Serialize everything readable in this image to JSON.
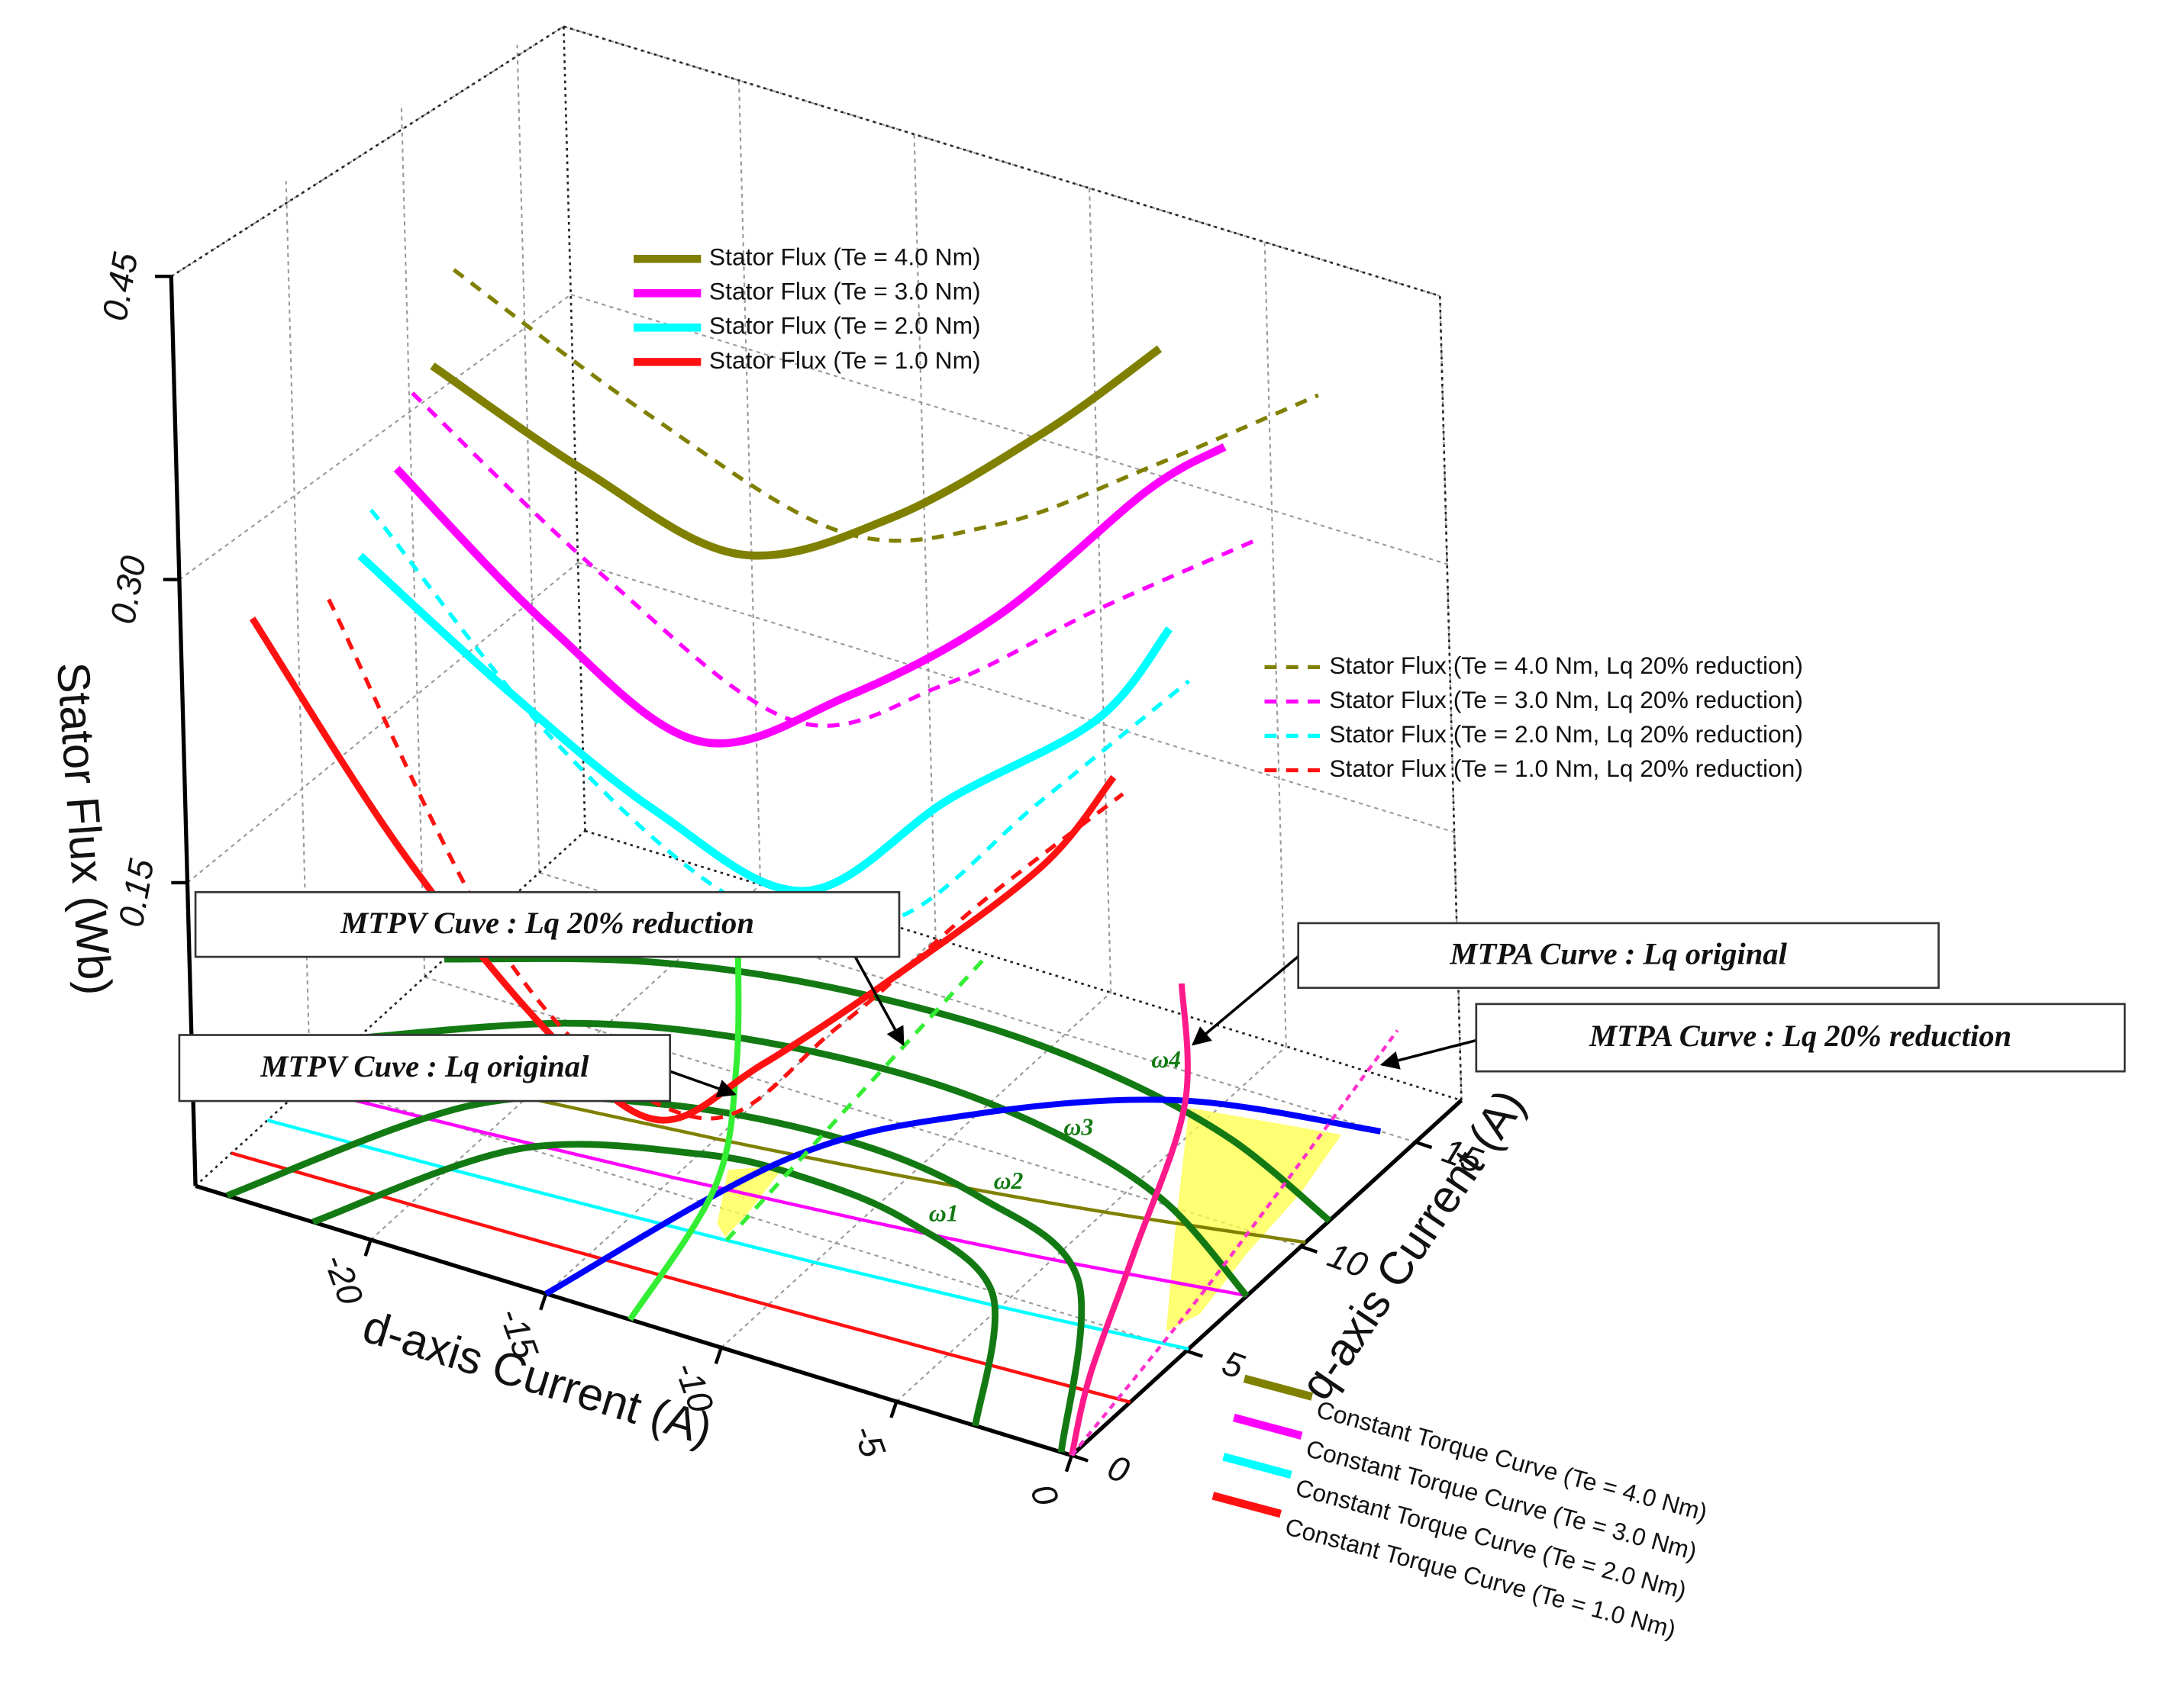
{
  "chart_data": {
    "type": "line3d",
    "xlabel": "d-axis Current (A)",
    "ylabel": "q-axis Current (A)",
    "zlabel": "Stator Flux (Wb)",
    "xlim": [
      -25,
      0
    ],
    "ylim": [
      0,
      17
    ],
    "zlim": [
      0,
      0.45
    ],
    "xticks": [
      -20,
      -15,
      -10,
      -5,
      0
    ],
    "yticks": [
      0,
      5,
      10,
      15
    ],
    "zticks": [
      0.15,
      {
        "value": 0.3,
        "label": "0.30"
      },
      0.45
    ],
    "grid": true,
    "series": [
      {
        "name": "Stator Flux (Te = 4.0 Nm)",
        "color": "#808000",
        "style": "solid",
        "linewidth": 6,
        "legend": "top",
        "x": [
          -22,
          -18,
          -14,
          -10,
          -6,
          -3
        ],
        "y": [
          6.58,
          7.03,
          7.56,
          8.16,
          8.87,
          9.44
        ],
        "z": [
          0.36,
          0.325,
          0.3,
          0.335,
          0.395,
          0.45
        ]
      },
      {
        "name": "Stator Flux (Te = 3.0 Nm)",
        "color": "#ff00ff",
        "style": "solid",
        "linewidth": 6,
        "legend": "top",
        "x": [
          -22,
          -18,
          -14,
          -10,
          -6,
          -2,
          0
        ],
        "y": [
          4.94,
          5.28,
          5.67,
          6.12,
          6.65,
          7.28,
          7.65
        ],
        "z": [
          0.323,
          0.263,
          0.223,
          0.263,
          0.32,
          0.4,
          0.43
        ]
      },
      {
        "name": "Stator Flux (Te = 2.0 Nm)",
        "color": "#00ffff",
        "style": "solid",
        "linewidth": 6,
        "legend": "top",
        "x": [
          -22,
          -18,
          -14,
          -10,
          -6,
          -2,
          0
        ],
        "y": [
          3.29,
          3.52,
          3.78,
          4.08,
          4.43,
          4.86,
          5.1
        ],
        "z": [
          0.295,
          0.247,
          0.206,
          0.185,
          0.249,
          0.306,
          0.36
        ]
      },
      {
        "name": "Stator Flux (Te = 1.0 Nm)",
        "color": "#ff1111",
        "style": "solid",
        "linewidth": 5,
        "legend": "top",
        "x": [
          -24,
          -20,
          -16,
          -13,
          -10,
          -6,
          -2,
          0
        ],
        "y": [
          1.59,
          1.7,
          1.82,
          1.93,
          2.04,
          2.2,
          2.43,
          2.55
        ],
        "z": [
          0.27,
          0.176,
          0.106,
          0.077,
          0.119,
          0.185,
          0.257,
          0.31
        ]
      },
      {
        "name": "Stator Flux (Te = 4.0 Nm, Lq 20% reduction)",
        "color": "#808000",
        "style": "dashed",
        "linewidth": 3,
        "legend": "right",
        "x": [
          -22,
          -17,
          -12,
          -8,
          -4,
          0
        ],
        "y": [
          7.6,
          8.2,
          9.0,
          9.7,
          10.6,
          11.7
        ],
        "z": [
          0.4,
          0.35,
          0.31,
          0.33,
          0.376,
          0.427
        ]
      },
      {
        "name": "Stator Flux (Te = 3.0 Nm, Lq 20% reduction)",
        "color": "#ff00ff",
        "style": "dashed",
        "linewidth": 3,
        "legend": "right",
        "x": [
          -22,
          -17,
          -12,
          -8,
          -4,
          0
        ],
        "y": [
          5.7,
          6.15,
          6.75,
          7.3,
          7.95,
          8.8
        ],
        "z": [
          0.354,
          0.286,
          0.234,
          0.269,
          0.323,
          0.373
        ]
      },
      {
        "name": "Stator Flux (Te = 2.0 Nm, Lq 20% reduction)",
        "color": "#00ffff",
        "style": "dashed",
        "linewidth": 3,
        "legend": "right",
        "x": [
          -22,
          -17,
          -12,
          -8,
          -4,
          0
        ],
        "y": [
          3.8,
          4.1,
          4.5,
          4.87,
          5.3,
          5.87
        ],
        "z": [
          0.313,
          0.22,
          0.163,
          0.174,
          0.25,
          0.327
        ]
      },
      {
        "name": "Stator Flux (Te = 1.0 Nm, Lq 20% reduction)",
        "color": "#ff1111",
        "style": "dashed",
        "linewidth": 3,
        "legend": "right",
        "x": [
          -22,
          -17,
          -12,
          -8,
          -4,
          0
        ],
        "y": [
          1.9,
          2.05,
          2.25,
          2.43,
          2.65,
          2.93
        ],
        "z": [
          0.287,
          0.128,
          0.08,
          0.145,
          0.225,
          0.298
        ]
      },
      {
        "name": "Constant Torque Curve (Te = 4.0 Nm)",
        "color": "#808000",
        "style": "solid",
        "linewidth": 2.5,
        "legend": "bottom",
        "x": [
          -25,
          -20,
          -15,
          -10,
          -5,
          0
        ],
        "y": [
          6.28,
          6.8,
          7.42,
          8.16,
          9.07,
          10.2
        ]
      },
      {
        "name": "Constant Torque Curve (Te = 3.0 Nm)",
        "color": "#ff00ff",
        "style": "solid",
        "linewidth": 2.5,
        "legend": "bottom",
        "x": [
          -25,
          -20,
          -15,
          -10,
          -5,
          0
        ],
        "y": [
          4.71,
          5.1,
          5.56,
          6.12,
          6.8,
          7.65
        ]
      },
      {
        "name": "Constant Torque Curve (Te = 2.0 Nm)",
        "color": "#00ffff",
        "style": "solid",
        "linewidth": 2.5,
        "legend": "bottom",
        "x": [
          -25,
          -20,
          -15,
          -10,
          -5,
          0
        ],
        "y": [
          3.14,
          3.4,
          3.71,
          4.08,
          4.53,
          5.1
        ]
      },
      {
        "name": "Constant Torque Curve (Te = 1.0 Nm)",
        "color": "#ff1111",
        "style": "solid",
        "linewidth": 2.5,
        "legend": "bottom",
        "x": [
          -25,
          -20,
          -15,
          -10,
          -5,
          0
        ],
        "y": [
          1.57,
          1.7,
          1.85,
          2.04,
          2.27,
          2.55
        ]
      },
      {
        "label": "ω1",
        "color": "#137a13",
        "style": "solid",
        "linewidth": 5,
        "x": [
          -21.65,
          -19,
          -15,
          -12.2,
          -9,
          -5.5,
          -2.75
        ],
        "y": [
          0,
          4.86,
          6.69,
          7.0,
          6.59,
          4.94,
          0
        ]
      },
      {
        "label": "ω2",
        "color": "#137a13",
        "style": "solid",
        "linewidth": 5,
        "x": [
          -24.1,
          -21,
          -17,
          -12.2,
          -8,
          -4,
          -0.3
        ],
        "y": [
          0,
          5.92,
          8.05,
          8.8,
          8.23,
          6.38,
          0
        ]
      },
      {
        "label": "ω3",
        "color": "#137a13",
        "style": "solid",
        "linewidth": 5,
        "x": [
          -25,
          -21,
          -17,
          -12.2,
          -8,
          -4,
          0
        ],
        "y": [
          7.08,
          9.85,
          11.26,
          11.8,
          11.39,
          10.13,
          7.63
        ]
      },
      {
        "label": "ω4",
        "color": "#137a13",
        "style": "solid",
        "linewidth": 5,
        "x": [
          -25,
          -21,
          -17,
          -12.2,
          -8,
          -4,
          0
        ],
        "y": [
          10.86,
          12.85,
          13.96,
          14.4,
          14.06,
          13.07,
          11.24
        ]
      },
      {
        "color": "#0000ff",
        "style": "solid",
        "linewidth": 4.5,
        "x": [
          -15,
          -13,
          -10,
          -6,
          -1
        ],
        "y": [
          0,
          7.5,
          11.2,
          13.9,
          15
        ]
      },
      {
        "name": "MTPV Cuve : Lq original",
        "color": "#33ee33",
        "style": "solid",
        "linewidth": 4.5,
        "x": [
          -12.6,
          -13.9,
          -16.3,
          -19.4
        ],
        "y": [
          0,
          5.7,
          10.3,
          15.1
        ]
      },
      {
        "name": "MTPV Cuve : Lq 20% reduction",
        "color": "#33ee33",
        "style": "dashed",
        "linewidth": 3,
        "x": [
          -12.4,
          -12.96,
          -13.5
        ],
        "y": [
          3.9,
          10.4,
          16.9
        ]
      },
      {
        "name": "MTPA Curve : Lq original",
        "color": "#ff1a8c",
        "style": "solid",
        "linewidth": 4.5,
        "x": [
          0,
          -1.5,
          -3.4,
          -5.8,
          -8.7
        ],
        "y": [
          0,
          3.1,
          7.9,
          13.8,
          18.1
        ]
      },
      {
        "name": "MTPA Curve  : Lq 20% reduction",
        "color": "#ff33cc",
        "style": "dotted",
        "linewidth": 2.5,
        "x": [
          0,
          -1.1,
          -3.0
        ],
        "y": [
          0,
          7.8,
          18.8
        ]
      }
    ]
  }
}
